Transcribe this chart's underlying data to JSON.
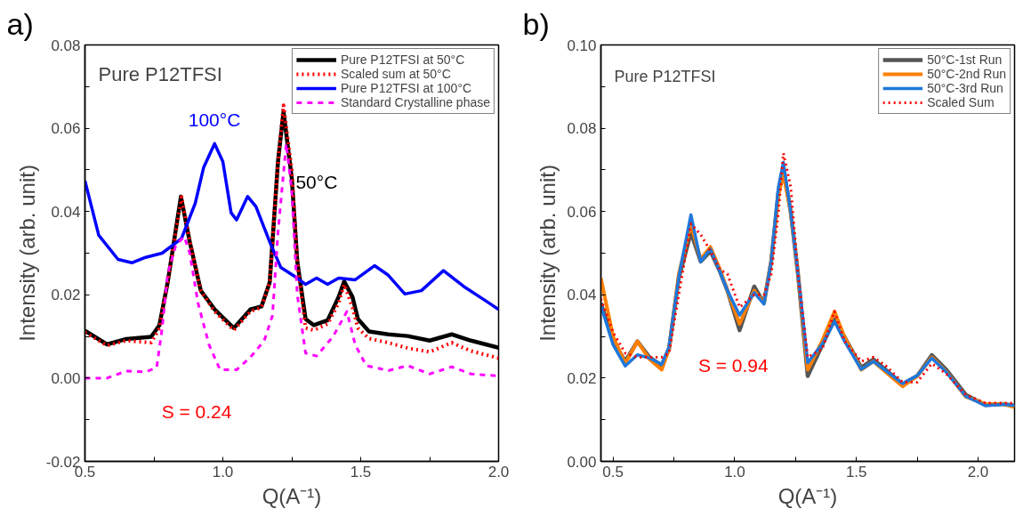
{
  "chart_data": [
    {
      "type": "line",
      "title": "Pure P12TFSI",
      "xlabel": "Q(A⁻¹)",
      "ylabel": "Intensity (arb. unit)",
      "xlim": [
        0.5,
        2.0
      ],
      "ylim": [
        -0.02,
        0.08
      ],
      "xticks": [
        {
          "value": 0.5,
          "label": "0.5"
        },
        {
          "value": 0.75,
          "label": null
        },
        {
          "value": 1.0,
          "label": "1.0"
        },
        {
          "value": 1.25,
          "label": null
        },
        {
          "value": 1.5,
          "label": "1.5"
        },
        {
          "value": 1.75,
          "label": null
        },
        {
          "value": 2.0,
          "label": "2.0"
        }
      ],
      "yticks": [
        {
          "value": -0.02,
          "label": "-0.02"
        },
        {
          "value": -0.01,
          "label": null
        },
        {
          "value": 0,
          "label": "0.00"
        },
        {
          "value": 0.01,
          "label": null
        },
        {
          "value": 0.02,
          "label": "0.02"
        },
        {
          "value": 0.03,
          "label": null
        },
        {
          "value": 0.04,
          "label": "0.04"
        },
        {
          "value": 0.05,
          "label": null
        },
        {
          "value": 0.06,
          "label": "0.06"
        },
        {
          "value": 0.07,
          "label": null
        },
        {
          "value": 0.08,
          "label": "0.08"
        }
      ],
      "grid": false,
      "legend": "top right",
      "annotations": [
        "a)",
        "100°C",
        "50°C",
        "S = 0.24"
      ],
      "series": [
        {
          "name": "Pure P12TFSI at 50°C",
          "color": "#000000",
          "line_style": "solid",
          "x": [
            0.5,
            0.58,
            0.65,
            0.74,
            0.77,
            0.8,
            0.848,
            0.88,
            0.92,
            0.97,
            1.04,
            1.1,
            1.14,
            1.17,
            1.2,
            1.22,
            1.25,
            1.27,
            1.3,
            1.33,
            1.38,
            1.42,
            1.44,
            1.47,
            1.49,
            1.53,
            1.6,
            1.67,
            1.75,
            1.83,
            1.9,
            2.0
          ],
          "values": [
            0.0114,
            0.0081,
            0.0094,
            0.0099,
            0.0127,
            0.023,
            0.0436,
            0.0327,
            0.021,
            0.0165,
            0.012,
            0.0165,
            0.0172,
            0.023,
            0.052,
            0.064,
            0.048,
            0.028,
            0.0142,
            0.0127,
            0.0139,
            0.0195,
            0.0232,
            0.0195,
            0.0142,
            0.0112,
            0.0105,
            0.0101,
            0.009,
            0.0105,
            0.009,
            0.0073
          ]
        },
        {
          "name": "Scaled sum at 50°C",
          "color": "#ff0000",
          "line_style": "dotted",
          "x": [
            0.5,
            0.58,
            0.65,
            0.74,
            0.77,
            0.8,
            0.85,
            0.88,
            0.92,
            0.97,
            1.04,
            1.1,
            1.14,
            1.17,
            1.2,
            1.22,
            1.25,
            1.27,
            1.3,
            1.33,
            1.38,
            1.42,
            1.44,
            1.47,
            1.49,
            1.53,
            1.6,
            1.67,
            1.75,
            1.83,
            1.9,
            2.0
          ],
          "values": [
            0.011,
            0.0078,
            0.009,
            0.0085,
            0.012,
            0.023,
            0.0435,
            0.033,
            0.021,
            0.016,
            0.0115,
            0.016,
            0.017,
            0.023,
            0.052,
            0.0655,
            0.05,
            0.028,
            0.012,
            0.0115,
            0.013,
            0.018,
            0.0225,
            0.017,
            0.012,
            0.0095,
            0.0085,
            0.0072,
            0.0063,
            0.0085,
            0.0065,
            0.0048
          ]
        },
        {
          "name": "Pure P12TFSI at 100°C",
          "color": "#0000ff",
          "line_style": "solid",
          "x": [
            0.5,
            0.55,
            0.62,
            0.67,
            0.72,
            0.78,
            0.85,
            0.9,
            0.93,
            0.97,
            1.0,
            1.03,
            1.05,
            1.09,
            1.12,
            1.17,
            1.21,
            1.27,
            1.3,
            1.34,
            1.38,
            1.42,
            1.48,
            1.55,
            1.6,
            1.66,
            1.72,
            1.8,
            1.88,
            1.95,
            2.0
          ],
          "values": [
            0.0474,
            0.0343,
            0.0285,
            0.0277,
            0.029,
            0.03,
            0.0335,
            0.042,
            0.0505,
            0.0563,
            0.052,
            0.0397,
            0.038,
            0.0436,
            0.0412,
            0.0327,
            0.0266,
            0.024,
            0.0225,
            0.024,
            0.0225,
            0.024,
            0.0236,
            0.027,
            0.0247,
            0.0202,
            0.021,
            0.0258,
            0.0217,
            0.0187,
            0.0165
          ]
        },
        {
          "name": "Standard Crystalline phase",
          "color": "#ff00ff",
          "line_style": "dashed",
          "x": [
            0.5,
            0.58,
            0.65,
            0.72,
            0.76,
            0.78,
            0.8,
            0.83,
            0.86,
            0.88,
            0.91,
            0.95,
            0.99,
            1.05,
            1.1,
            1.15,
            1.18,
            1.2,
            1.23,
            1.25,
            1.27,
            1.3,
            1.34,
            1.4,
            1.45,
            1.48,
            1.52,
            1.6,
            1.67,
            1.75,
            1.83,
            1.9,
            2.0
          ],
          "values": [
            0.0,
            0.0,
            0.0017,
            0.0015,
            0.0025,
            0.012,
            0.025,
            0.032,
            0.034,
            0.03,
            0.018,
            0.008,
            0.002,
            0.002,
            0.005,
            0.009,
            0.015,
            0.035,
            0.0563,
            0.045,
            0.02,
            0.006,
            0.0053,
            0.01,
            0.016,
            0.008,
            0.003,
            0.0018,
            0.003,
            0.001,
            0.0027,
            0.001,
            0.0005
          ]
        }
      ]
    },
    {
      "type": "line",
      "title": "Pure P12TFSI",
      "xlabel": "Q(A⁻¹)",
      "ylabel": "Intensity (arb. unit)",
      "xlim": [
        0.45,
        2.15
      ],
      "ylim": [
        0,
        0.1
      ],
      "xticks": [
        {
          "value": 0.5,
          "label": "0.5"
        },
        {
          "value": 0.75,
          "label": null
        },
        {
          "value": 1.0,
          "label": "1.0"
        },
        {
          "value": 1.25,
          "label": null
        },
        {
          "value": 1.5,
          "label": "1.5"
        },
        {
          "value": 1.75,
          "label": null
        },
        {
          "value": 2.0,
          "label": "2.0"
        }
      ],
      "yticks": [
        {
          "value": 0,
          "label": "0.00"
        },
        {
          "value": 0.01,
          "label": null
        },
        {
          "value": 0.02,
          "label": "0.02"
        },
        {
          "value": 0.03,
          "label": null
        },
        {
          "value": 0.04,
          "label": "0.04"
        },
        {
          "value": 0.05,
          "label": null
        },
        {
          "value": 0.06,
          "label": "0.06"
        },
        {
          "value": 0.07,
          "label": null
        },
        {
          "value": 0.08,
          "label": "0.08"
        },
        {
          "value": 0.09,
          "label": null
        },
        {
          "value": 0.1,
          "label": "0.10"
        }
      ],
      "grid": false,
      "legend": "top right",
      "annotations": [
        "b)",
        "S = 0.94"
      ],
      "x": [
        0.45,
        0.5,
        0.55,
        0.6,
        0.65,
        0.7,
        0.73,
        0.77,
        0.82,
        0.86,
        0.9,
        0.94,
        0.97,
        1.02,
        1.08,
        1.12,
        1.15,
        1.18,
        1.2,
        1.23,
        1.26,
        1.3,
        1.36,
        1.41,
        1.45,
        1.52,
        1.57,
        1.62,
        1.69,
        1.75,
        1.81,
        1.87,
        1.95,
        2.03,
        2.1,
        2.15
      ],
      "series": [
        {
          "name": "50°C-1st Run",
          "color": "#555555",
          "line_style": "solid",
          "values": [
            0.038,
            0.029,
            0.024,
            0.0288,
            0.025,
            0.023,
            0.027,
            0.044,
            0.055,
            0.048,
            0.0505,
            0.0455,
            0.041,
            0.0315,
            0.042,
            0.038,
            0.048,
            0.065,
            0.07,
            0.06,
            0.045,
            0.0205,
            0.028,
            0.034,
            0.03,
            0.0225,
            0.0245,
            0.022,
            0.0185,
            0.0205,
            0.0255,
            0.022,
            0.016,
            0.0135,
            0.0138,
            0.0134
          ]
        },
        {
          "name": "50°C-2nd Run",
          "color": "#ff8000",
          "line_style": "solid",
          "values": [
            0.044,
            0.03,
            0.0235,
            0.0288,
            0.0245,
            0.022,
            0.027,
            0.045,
            0.057,
            0.0485,
            0.0515,
            0.046,
            0.041,
            0.033,
            0.041,
            0.038,
            0.048,
            0.064,
            0.069,
            0.06,
            0.045,
            0.022,
            0.029,
            0.036,
            0.03,
            0.022,
            0.024,
            0.0215,
            0.018,
            0.0205,
            0.025,
            0.0215,
            0.0155,
            0.0138,
            0.0138,
            0.013
          ]
        },
        {
          "name": "50°C-3rd Run",
          "color": "#1e78dc",
          "line_style": "solid",
          "values": [
            0.0374,
            0.028,
            0.0229,
            0.0256,
            0.0248,
            0.0233,
            0.0275,
            0.0443,
            0.0592,
            0.048,
            0.051,
            0.0455,
            0.041,
            0.0351,
            0.0405,
            0.0378,
            0.048,
            0.066,
            0.0718,
            0.06,
            0.045,
            0.0237,
            0.0282,
            0.0336,
            0.029,
            0.0221,
            0.024,
            0.0218,
            0.0187,
            0.0206,
            0.0248,
            0.0214,
            0.0156,
            0.0134,
            0.0137,
            0.0134
          ]
        },
        {
          "name": "Scaled Sum",
          "color": "#ff0000",
          "line_style": "dotted",
          "values": [
            0.039,
            0.031,
            0.026,
            0.025,
            0.025,
            0.025,
            0.026,
            0.04,
            0.057,
            0.0545,
            0.0505,
            0.046,
            0.045,
            0.037,
            0.04,
            0.04,
            0.045,
            0.06,
            0.074,
            0.066,
            0.045,
            0.025,
            0.027,
            0.036,
            0.029,
            0.024,
            0.025,
            0.023,
            0.019,
            0.019,
            0.0235,
            0.021,
            0.016,
            0.014,
            0.014,
            0.014
          ]
        }
      ]
    }
  ]
}
